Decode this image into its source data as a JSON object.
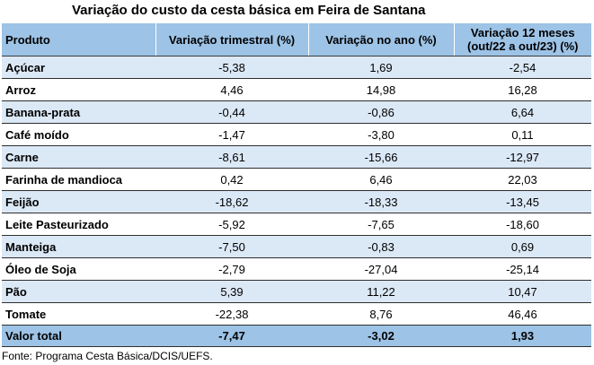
{
  "title": "Variação do custo da cesta básica em Feira de Santana",
  "table": {
    "headers": [
      "Produto",
      "Variação trimestral (%)",
      "Variação no ano (%)",
      "Variação 12 meses (out/22 a out/23) (%)"
    ],
    "rows": [
      [
        "Açúcar",
        "-5,38",
        "1,69",
        "-2,54"
      ],
      [
        "Arroz",
        "4,46",
        "14,98",
        "16,28"
      ],
      [
        "Banana-prata",
        "-0,44",
        "-0,86",
        "6,64"
      ],
      [
        "Café moído",
        "-1,47",
        "-3,80",
        "0,11"
      ],
      [
        "Carne",
        "-8,61",
        "-15,66",
        "-12,97"
      ],
      [
        "Farinha de mandioca",
        "0,42",
        "6,46",
        "22,03"
      ],
      [
        "Feijão",
        "-18,62",
        "-18,33",
        "-13,45"
      ],
      [
        "Leite Pasteurizado",
        "-5,92",
        "-7,65",
        "-18,60"
      ],
      [
        "Manteiga",
        "-7,50",
        "-0,83",
        "0,69"
      ],
      [
        "Óleo de Soja",
        "-2,79",
        "-27,04",
        "-25,14"
      ],
      [
        "Pão",
        "5,39",
        "11,22",
        "10,47"
      ],
      [
        "Tomate",
        "-22,38",
        "8,76",
        "46,46"
      ]
    ],
    "total": [
      "Valor total",
      "-7,47",
      "-3,02",
      "1,93"
    ]
  },
  "source": "Fonte: Programa Cesta Básica/DCIS/UEFS.",
  "colors": {
    "header_bg": "#9dc3e6",
    "stripe_bg": "#dbe8f6"
  }
}
